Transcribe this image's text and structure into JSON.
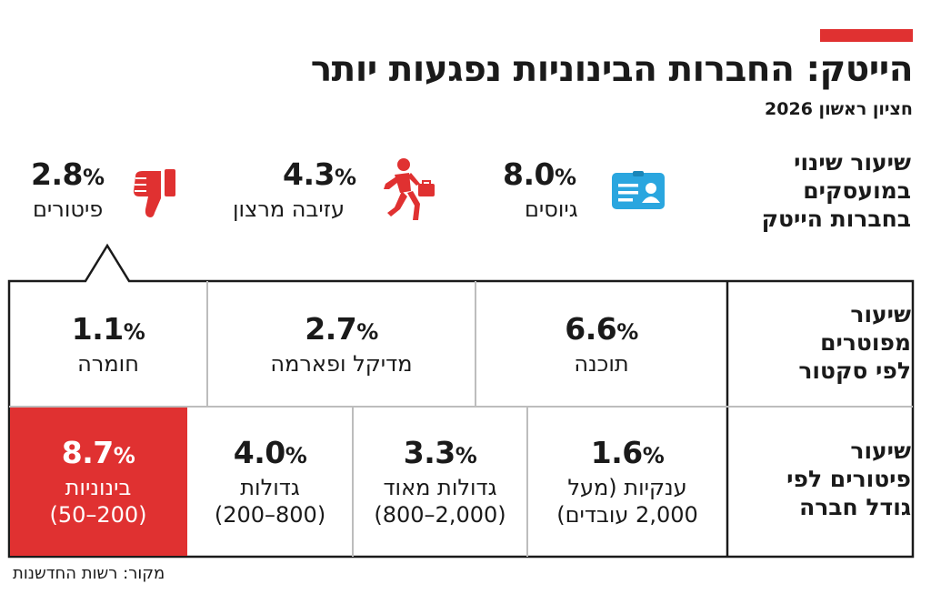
{
  "header": {
    "title": "הייטק: החברות הבינוניות נפגעות יותר",
    "subtitle": "חציון ראשון 2026",
    "accent_color": "#e03131"
  },
  "colors": {
    "accent": "#e03131",
    "line": "#1a1a1a",
    "divider": "#bdbdbd",
    "icon_blue": "#2aa6df"
  },
  "chart_data": [
    {
      "type": "table",
      "heading_lines": [
        "שיעור שינוי",
        "במועסקים",
        "בחברות הייטק"
      ],
      "categories": [
        "גיוסים",
        "עזיבה מרצון",
        "פיטורים"
      ],
      "values": [
        8.0,
        4.3,
        2.8
      ],
      "value_labels": [
        "8.0",
        "4.3",
        "2.8"
      ],
      "unit": "%",
      "icons": [
        "id-card-icon",
        "running-businessman-icon",
        "thumbs-down-icon"
      ]
    },
    {
      "type": "table",
      "heading_lines": [
        "שיעור",
        "מפוטרים",
        "לפי סקטור"
      ],
      "categories": [
        "תוכנה",
        "מדיקל ופארמה",
        "חומרה"
      ],
      "values": [
        6.6,
        2.7,
        1.1
      ],
      "value_labels": [
        "6.6",
        "2.7",
        "1.1"
      ],
      "unit": "%"
    },
    {
      "type": "table",
      "heading_lines": [
        "שיעור",
        "פיטורים לפי",
        "גודל חברה"
      ],
      "categories": [
        [
          "ענקיות (מעל",
          "2,000 עובדים)"
        ],
        [
          "גדולות מאוד",
          "(2,000–800)"
        ],
        [
          "גדולות",
          "(800–200)"
        ],
        [
          "בינוניות",
          "(200–50)"
        ]
      ],
      "values": [
        1.6,
        3.3,
        4.0,
        8.7
      ],
      "value_labels": [
        "1.6",
        "3.3",
        "4.0",
        "8.7"
      ],
      "unit": "%",
      "highlight": "בינוניות"
    }
  ],
  "source": "מקור: רשות החדשנות"
}
